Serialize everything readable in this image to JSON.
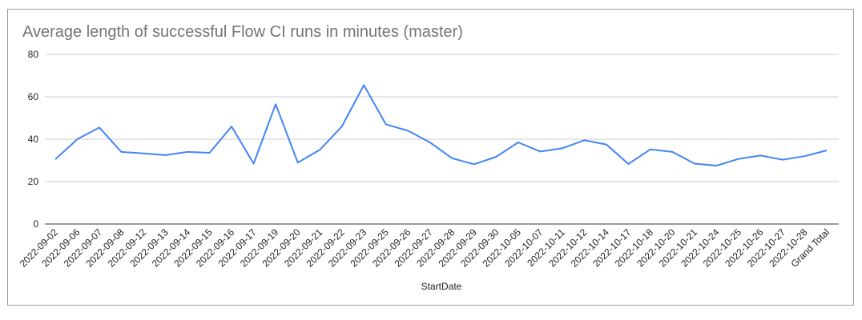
{
  "chart_data": {
    "type": "line",
    "title": "Average length of successful Flow CI runs in minutes (master)",
    "xlabel": "StartDate",
    "ylabel": "",
    "ylim": [
      0,
      80
    ],
    "yticks": [
      0,
      20,
      40,
      60,
      80
    ],
    "grid": true,
    "line_color": "#4285f4",
    "categories": [
      "2022-09-02",
      "2022-09-06",
      "2022-09-07",
      "2022-09-08",
      "2022-09-12",
      "2022-09-13",
      "2022-09-14",
      "2022-09-15",
      "2022-09-16",
      "2022-09-17",
      "2022-09-19",
      "2022-09-20",
      "2022-09-21",
      "2022-09-22",
      "2022-09-23",
      "2022-09-25",
      "2022-09-26",
      "2022-09-27",
      "2022-09-28",
      "2022-09-29",
      "2022-09-30",
      "2022-10-05",
      "2022-10-07",
      "2022-10-11",
      "2022-10-12",
      "2022-10-14",
      "2022-10-17",
      "2022-10-18",
      "2022-10-20",
      "2022-10-21",
      "2022-10-24",
      "2022-10-25",
      "2022-10-26",
      "2022-10-27",
      "2022-10-28",
      "Grand Total"
    ],
    "series": [
      {
        "values": [
          30.5,
          40,
          45.5,
          34,
          33.3,
          32.5,
          34,
          33.6,
          46,
          28.5,
          56.5,
          29,
          35,
          46,
          65.5,
          47,
          44,
          38.5,
          31,
          28.2,
          31.7,
          38.5,
          34.2,
          35.7,
          39.5,
          37.5,
          28.3,
          35.2,
          34,
          28.5,
          27.5,
          30.7,
          32.3,
          30.3,
          32,
          34.7
        ]
      }
    ]
  }
}
